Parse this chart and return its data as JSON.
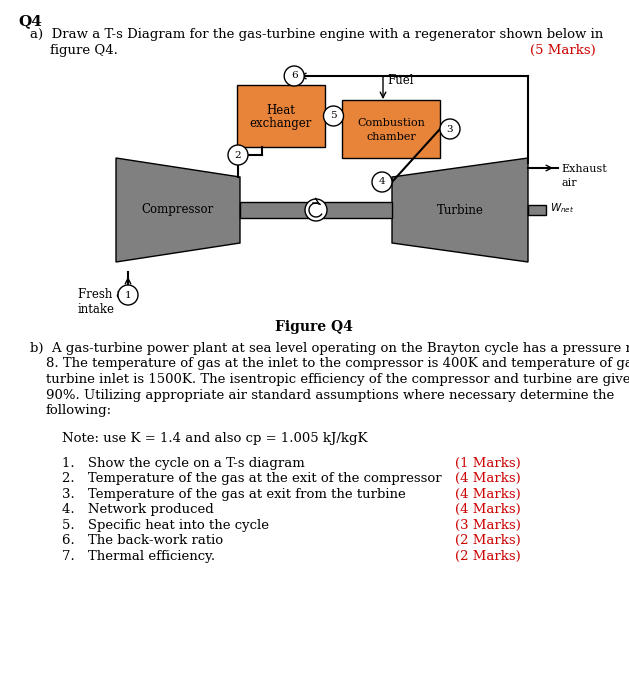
{
  "title": "Q4",
  "list_items": [
    "Show the cycle on a T-s diagram",
    "Temperature of the gas at the exit of the compressor",
    "Temperature of the gas at exit from the turbine",
    "Network produced",
    "Specific heat into the cycle",
    "The back-work ratio",
    "Thermal efficiency."
  ],
  "marks": [
    "(1 Marks)",
    "(4 Marks)",
    "(4 Marks)",
    "(4 Marks)",
    "(3 Marks)",
    "(2 Marks)",
    "(2 Marks)"
  ],
  "orange_color": "#E8833A",
  "gray_color": "#808080",
  "red_color": "#CC0000",
  "bg_color": "#FFFFFF",
  "text_color": "#000000"
}
